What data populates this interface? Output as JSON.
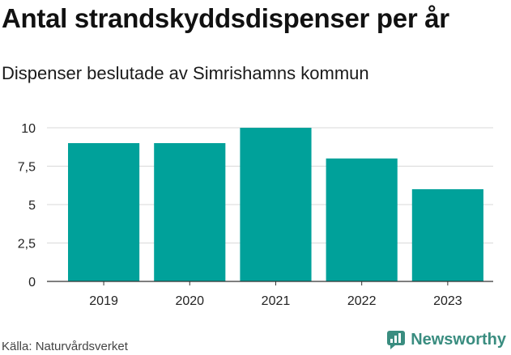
{
  "title": "Antal strandskyddsdispenser per år",
  "subtitle": "Dispenser beslutade av Simrishamns kommun",
  "source": "Källa: Naturvårdsverket",
  "brand": {
    "name": "Newsworthy",
    "icon": "newsworthy-logo-icon",
    "color": "#3a8d80"
  },
  "chart_data": {
    "type": "bar",
    "title": "Antal strandskyddsdispenser per år",
    "subtitle": "Dispenser beslutade av Simrishamns kommun",
    "categories": [
      "2019",
      "2020",
      "2021",
      "2022",
      "2023"
    ],
    "values": [
      9,
      9,
      10,
      8,
      6
    ],
    "xlabel": "",
    "ylabel": "",
    "ylim": [
      0,
      10
    ],
    "yticks": [
      0,
      2.5,
      5,
      7.5,
      10
    ],
    "ytick_labels": [
      "0",
      "2,5",
      "5",
      "7,5",
      "10"
    ],
    "grid": true,
    "bar_color": "#00a19a",
    "gridline_color": "#d9d9d9"
  }
}
